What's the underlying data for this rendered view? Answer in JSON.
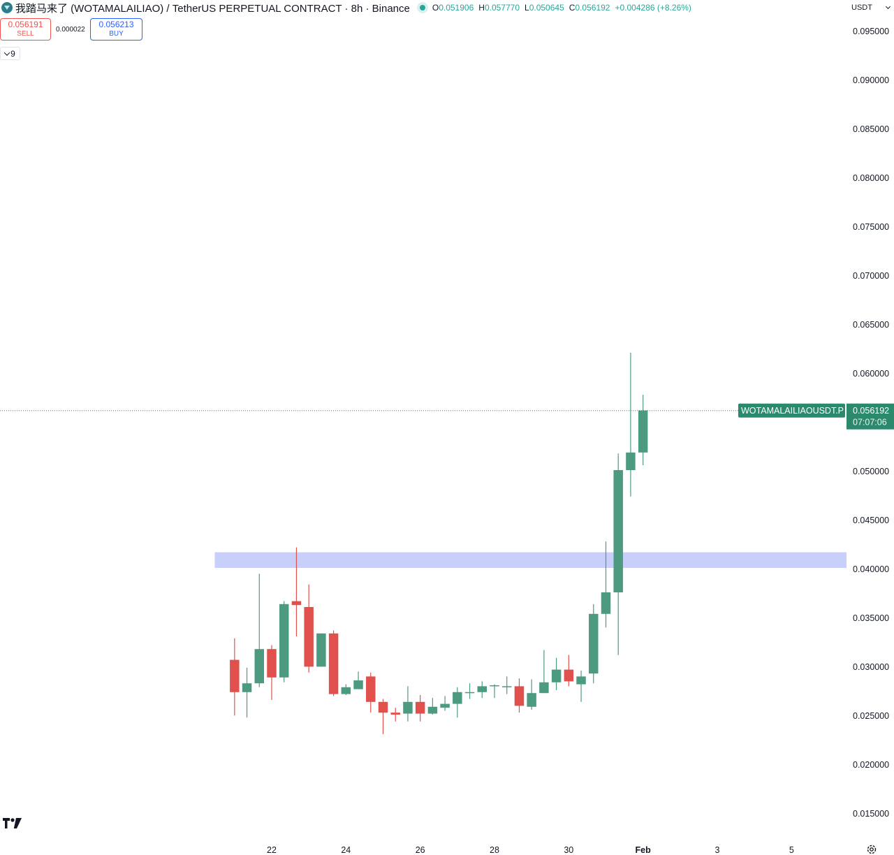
{
  "header": {
    "title": "我踏马来了 (WOTAMALAILIAO) / TetherUS PERPETUAL CONTRACT · 8h · Binance",
    "icon": "diamond-symbol-icon",
    "ohlc": {
      "o_label": "O",
      "o": "0.051906",
      "h_label": "H",
      "h": "0.057770",
      "l_label": "L",
      "l": "0.050645",
      "c_label": "C",
      "c": "0.056192",
      "change": "+0.004286 (+8.26%)"
    }
  },
  "trading": {
    "sell_price": "0.056191",
    "sell_label": "SELL",
    "spread": "0.000022",
    "buy_price": "0.056213",
    "buy_label": "BUY"
  },
  "indicators_toggle": {
    "count": "9",
    "icon": "chevron-down-icon"
  },
  "currency": {
    "selected": "USDT",
    "icon": "chevron-down-icon"
  },
  "price_label": {
    "symbol": "WOTAMALAILIAOUSDT.P",
    "price": "0.056192",
    "countdown": "07:07:06"
  },
  "colors": {
    "up": "#4c9a80",
    "down": "#e0504c",
    "zone": "#c9cffb",
    "last_price": "#2b8a6e",
    "bg": "#ffffff"
  },
  "chart_data": {
    "type": "candlestick",
    "interval": "8h",
    "y_ticks": [
      0.095,
      0.09,
      0.085,
      0.08,
      0.075,
      0.07,
      0.065,
      0.06,
      0.05,
      0.045,
      0.04,
      0.035,
      0.03,
      0.025,
      0.02,
      0.015
    ],
    "y_tick_labels": [
      "0.095000",
      "0.090000",
      "0.085000",
      "0.080000",
      "0.075000",
      "0.070000",
      "0.065000",
      "0.060000",
      "0.050000",
      "0.045000",
      "0.040000",
      "0.035000",
      "0.030000",
      "0.025000",
      "0.020000",
      "0.015000"
    ],
    "ylim": [
      0.0126,
      0.0966
    ],
    "x_ticks": [
      {
        "label": "22",
        "index": 1
      },
      {
        "label": "24",
        "index": 7
      },
      {
        "label": "26",
        "index": 13
      },
      {
        "label": "28",
        "index": 19
      },
      {
        "label": "30",
        "index": 25
      },
      {
        "label": "Feb",
        "index": 31,
        "bold": true
      },
      {
        "label": "3",
        "index": 37
      },
      {
        "label": "5",
        "index": 43
      }
    ],
    "x_range": [
      -20.95,
      47.44
    ],
    "candles": [
      {
        "o": 0.0307,
        "h": 0.0329,
        "l": 0.025,
        "c": 0.0274
      },
      {
        "o": 0.0274,
        "h": 0.0299,
        "l": 0.0248,
        "c": 0.0283
      },
      {
        "o": 0.0283,
        "h": 0.0395,
        "l": 0.0279,
        "c": 0.0318
      },
      {
        "o": 0.0318,
        "h": 0.0322,
        "l": 0.0266,
        "c": 0.0289
      },
      {
        "o": 0.0289,
        "h": 0.0367,
        "l": 0.0284,
        "c": 0.0364
      },
      {
        "o": 0.0367,
        "h": 0.0422,
        "l": 0.0331,
        "c": 0.0363
      },
      {
        "o": 0.0361,
        "h": 0.0384,
        "l": 0.0294,
        "c": 0.03
      },
      {
        "o": 0.03,
        "h": 0.0334,
        "l": 0.03,
        "c": 0.0334
      },
      {
        "o": 0.0334,
        "h": 0.0337,
        "l": 0.027,
        "c": 0.0272
      },
      {
        "o": 0.0272,
        "h": 0.0282,
        "l": 0.0271,
        "c": 0.0279
      },
      {
        "o": 0.0277,
        "h": 0.0295,
        "l": 0.0277,
        "c": 0.0286
      },
      {
        "o": 0.029,
        "h": 0.0294,
        "l": 0.0253,
        "c": 0.0264
      },
      {
        "o": 0.0264,
        "h": 0.0267,
        "l": 0.0231,
        "c": 0.0253
      },
      {
        "o": 0.0253,
        "h": 0.0258,
        "l": 0.0244,
        "c": 0.0251
      },
      {
        "o": 0.0252,
        "h": 0.028,
        "l": 0.0244,
        "c": 0.0264
      },
      {
        "o": 0.0264,
        "h": 0.0271,
        "l": 0.0244,
        "c": 0.0252
      },
      {
        "o": 0.0252,
        "h": 0.0268,
        "l": 0.0251,
        "c": 0.0259
      },
      {
        "o": 0.0258,
        "h": 0.027,
        "l": 0.0255,
        "c": 0.0262
      },
      {
        "o": 0.0262,
        "h": 0.0279,
        "l": 0.0248,
        "c": 0.0274
      },
      {
        "o": 0.0273,
        "h": 0.0283,
        "l": 0.0267,
        "c": 0.0274
      },
      {
        "o": 0.0274,
        "h": 0.0285,
        "l": 0.0268,
        "c": 0.028
      },
      {
        "o": 0.0281,
        "h": 0.0282,
        "l": 0.0268,
        "c": 0.0281
      },
      {
        "o": 0.028,
        "h": 0.029,
        "l": 0.0272,
        "c": 0.028
      },
      {
        "o": 0.028,
        "h": 0.0288,
        "l": 0.0253,
        "c": 0.026
      },
      {
        "o": 0.0259,
        "h": 0.0287,
        "l": 0.0256,
        "c": 0.0273
      },
      {
        "o": 0.0273,
        "h": 0.0317,
        "l": 0.0273,
        "c": 0.0284
      },
      {
        "o": 0.0284,
        "h": 0.0309,
        "l": 0.0276,
        "c": 0.0297
      },
      {
        "o": 0.0297,
        "h": 0.0312,
        "l": 0.028,
        "c": 0.0285
      },
      {
        "o": 0.0282,
        "h": 0.0296,
        "l": 0.0264,
        "c": 0.029
      },
      {
        "o": 0.0293,
        "h": 0.0364,
        "l": 0.0283,
        "c": 0.0354
      },
      {
        "o": 0.0354,
        "h": 0.0428,
        "l": 0.034,
        "c": 0.0376
      },
      {
        "o": 0.0376,
        "h": 0.0518,
        "l": 0.0312,
        "c": 0.0501
      },
      {
        "o": 0.0501,
        "h": 0.0621,
        "l": 0.0474,
        "c": 0.0519
      },
      {
        "o": 0.0519,
        "h": 0.0578,
        "l": 0.0506,
        "c": 0.0562
      }
    ],
    "start_index": -2,
    "zones": [
      {
        "from": 0.0401,
        "to": 0.0417,
        "x_from_index": -3.6,
        "x_to_index": "right_edge"
      }
    ],
    "last_price": 0.056192
  }
}
